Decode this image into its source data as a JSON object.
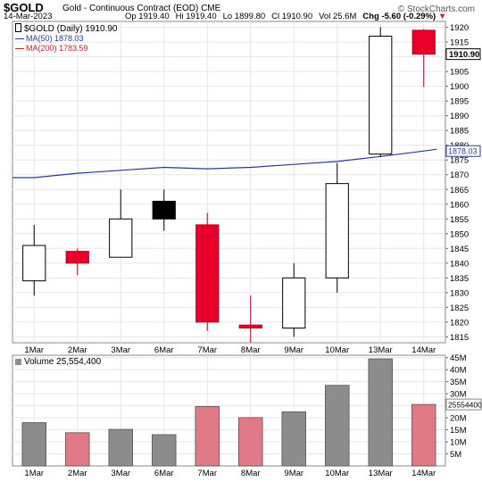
{
  "header": {
    "symbol": "$GOLD",
    "description": "Gold - Continuous Contract (EOD)",
    "exchange": "CME",
    "brand": "© StockCharts.com",
    "date": "14-Mar-2023",
    "open": "Op 1919.40",
    "high": "Hi 1919.40",
    "low": "Lo 1899.80",
    "close": "Cl 1910.90",
    "volume": "Vol 25.6M",
    "change": "Chg -5.60 (-0.29%)",
    "change_arrow": "▼"
  },
  "legend": {
    "ticker": "$GOLD (Daily) 1910.90",
    "ma50": "MA(50) 1878.03",
    "ma200": "MA(200) 1783.59",
    "volume": "Volume 25,554,400"
  },
  "colors": {
    "up": "#ffffff",
    "down_red": "#e8002a",
    "down_black": "#000000",
    "ma50": "#2b3a91",
    "vol_up": "#8c8c8c",
    "vol_down": "#e07a87",
    "grid": "#e6e6e6"
  },
  "chart_data": [
    {
      "type": "candlestick",
      "categories": [
        "1Mar",
        "2Mar",
        "3Mar",
        "6Mar",
        "7Mar",
        "8Mar",
        "9Mar",
        "10Mar",
        "13Mar",
        "14Mar"
      ],
      "open": [
        1834,
        1844,
        1842,
        1861,
        1853,
        1819,
        1818,
        1835,
        1877,
        1919
      ],
      "high": [
        1853,
        1845,
        1865,
        1865,
        1857,
        1829,
        1840,
        1874,
        1920,
        1919.4
      ],
      "low": [
        1829,
        1836,
        1842,
        1851,
        1817,
        1813,
        1815,
        1830,
        1876,
        1899.8
      ],
      "close": [
        1846,
        1840,
        1855,
        1855,
        1820,
        1818,
        1835,
        1867,
        1917,
        1910.9
      ],
      "candle_color": [
        "up",
        "down_red",
        "up",
        "down_black",
        "down_red",
        "down_red",
        "up",
        "up",
        "up",
        "down_red"
      ],
      "ma50": [
        1869,
        1870.5,
        1871.5,
        1872.5,
        1872.0,
        1872.5,
        1873.5,
        1874.5,
        1876.2,
        1878.03
      ],
      "ylim": [
        1813,
        1922
      ],
      "yticks": [
        1815,
        1820,
        1825,
        1830,
        1835,
        1840,
        1845,
        1850,
        1855,
        1860,
        1865,
        1870,
        1875,
        1880,
        1885,
        1890,
        1895,
        1900,
        1905,
        1910,
        1915,
        1920
      ],
      "last_price_label": "1910.90",
      "ma50_label": "1878.03",
      "grid": true
    },
    {
      "type": "bar",
      "categories": [
        "1Mar",
        "2Mar",
        "3Mar",
        "6Mar",
        "7Mar",
        "8Mar",
        "9Mar",
        "10Mar",
        "13Mar",
        "14Mar"
      ],
      "values": [
        18000000,
        13800000,
        15200000,
        13000000,
        24700000,
        20100000,
        22500000,
        33500000,
        44500000,
        25554400
      ],
      "bar_color": [
        "vol_up",
        "vol_down",
        "vol_up",
        "vol_up",
        "vol_down",
        "vol_down",
        "vol_up",
        "vol_up",
        "vol_up",
        "vol_down"
      ],
      "ylim": [
        0,
        46000000
      ],
      "yticks": [
        5000000,
        10000000,
        15000000,
        20000000,
        25000000,
        30000000,
        35000000,
        40000000,
        45000000
      ],
      "ytick_labels": [
        "5M",
        "10M",
        "15M",
        "20M",
        "25M",
        "30M",
        "35M",
        "40M",
        "45M"
      ],
      "last_value_label": "25554400",
      "grid": true
    }
  ]
}
